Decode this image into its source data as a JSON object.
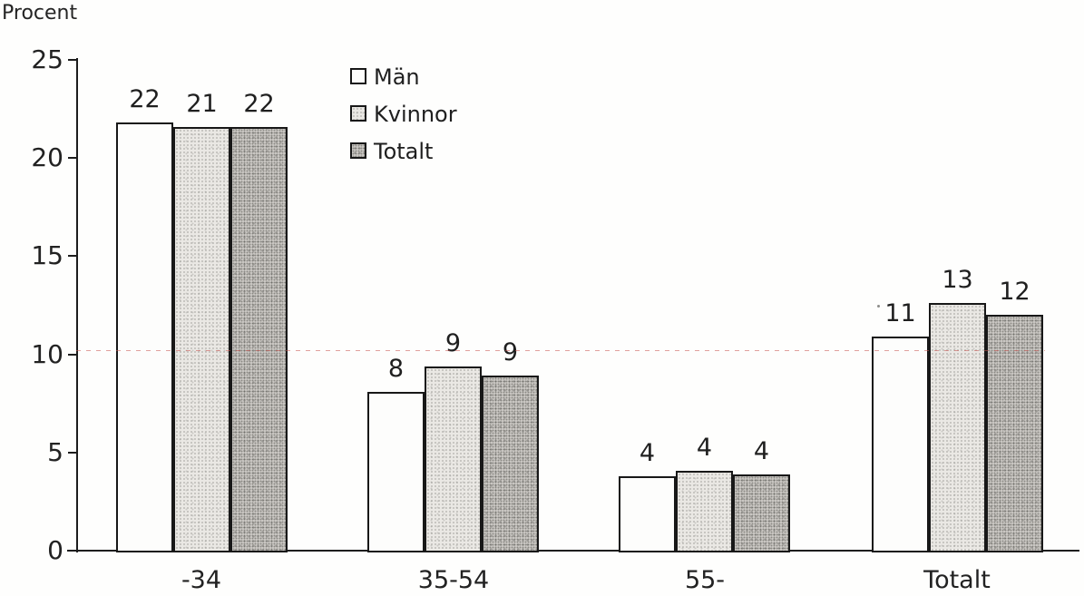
{
  "chart_data": {
    "type": "bar",
    "title": "",
    "ylabel": "Procent",
    "xlabel": "",
    "categories": [
      "-34",
      "35-54",
      "55-",
      "Totalt"
    ],
    "series": [
      {
        "name": "Män",
        "swatch": "white",
        "values": [
          22,
          8,
          4,
          11
        ],
        "drawn_heights": [
          21.8,
          8.1,
          3.8,
          10.9
        ]
      },
      {
        "name": "Kvinnor",
        "swatch": "light-dots",
        "values": [
          21,
          9,
          4,
          13
        ],
        "drawn_heights": [
          21.6,
          9.4,
          4.05,
          12.6
        ]
      },
      {
        "name": "Totalt",
        "swatch": "dark-dots",
        "values": [
          22,
          9,
          4,
          12
        ],
        "drawn_heights": [
          21.6,
          8.9,
          3.9,
          12.0
        ]
      }
    ],
    "ylim": [
      0,
      25
    ],
    "yticks": [
      0,
      5,
      10,
      15,
      20,
      25
    ],
    "grid": false,
    "legend_position": "top-inside-left",
    "data_labels_shown": true
  },
  "colors": {
    "ink": "#1f1f1f",
    "bar_border": "#181818",
    "fill_man": "#fdfdfc",
    "fill_kvinnor": "#eae8e4",
    "fill_totalt": "#d0cdc9",
    "scan_artifact_red": "#c85550",
    "background": "#fefefd"
  }
}
